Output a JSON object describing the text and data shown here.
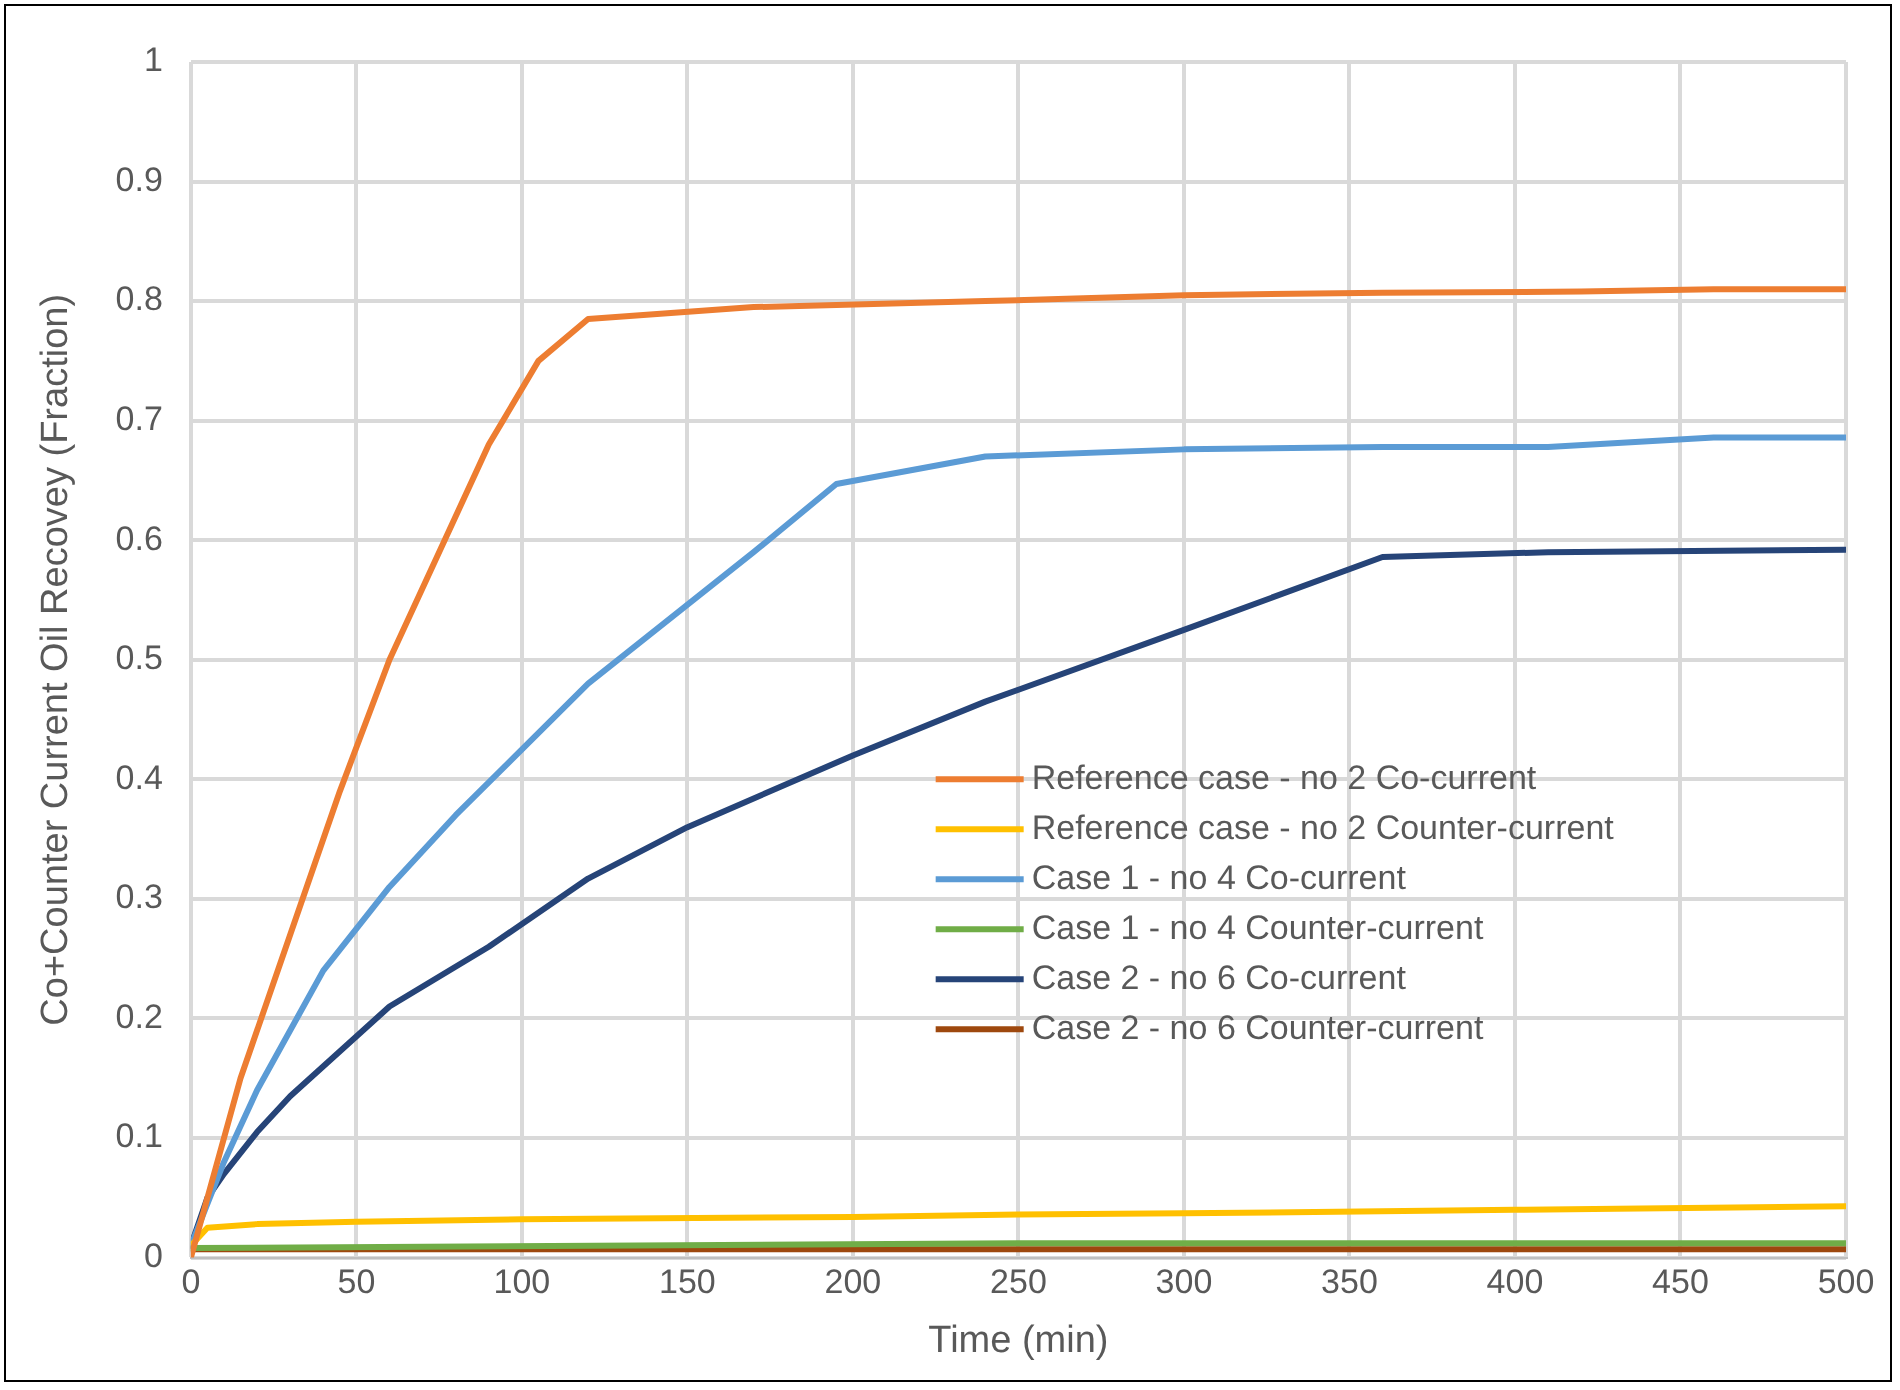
{
  "chart_data": {
    "type": "line",
    "xlabel": "Time (min)",
    "ylabel": "Co+Counter Current Oil Recovey (Fraction)",
    "xlim": [
      0,
      500
    ],
    "xticks": [
      0,
      50,
      100,
      150,
      200,
      250,
      300,
      350,
      400,
      450,
      500
    ],
    "ylim": [
      0,
      1
    ],
    "yticks": [
      0,
      0.1,
      0.2,
      0.3,
      0.4,
      0.5,
      0.6,
      0.7,
      0.8,
      0.9,
      1
    ],
    "grid": true,
    "legend": "center right",
    "marker": "none",
    "line_style": "solid",
    "series": [
      {
        "name": "Reference case - no 2 Co-current",
        "color": "#ed7d31",
        "x": [
          0,
          15,
          30,
          45,
          60,
          90,
          105,
          120,
          170,
          240,
          300,
          360,
          420,
          460,
          500
        ],
        "values": [
          0,
          0.15,
          0.27,
          0.39,
          0.5,
          0.68,
          0.75,
          0.785,
          0.795,
          0.8,
          0.805,
          0.807,
          0.808,
          0.81,
          0.81
        ]
      },
      {
        "name": "Reference case - no 2 Counter-current",
        "color": "#ffc000",
        "x": [
          0,
          5,
          20,
          50,
          100,
          200,
          250,
          300,
          400,
          500
        ],
        "values": [
          0.01,
          0.025,
          0.028,
          0.03,
          0.032,
          0.034,
          0.036,
          0.037,
          0.04,
          0.043
        ]
      },
      {
        "name": "Case 1 - no 4 Co-current",
        "color": "#5b9bd5",
        "x": [
          0,
          10,
          20,
          40,
          60,
          80,
          120,
          170,
          195,
          240,
          300,
          360,
          410,
          460,
          500
        ],
        "values": [
          0.01,
          0.08,
          0.14,
          0.24,
          0.31,
          0.37,
          0.48,
          0.59,
          0.647,
          0.67,
          0.676,
          0.678,
          0.678,
          0.686,
          0.686
        ]
      },
      {
        "name": "Case 1 - no 4 Counter-current",
        "color": "#70ad47",
        "x": [
          0,
          250,
          500
        ],
        "values": [
          0.008,
          0.012,
          0.012
        ]
      },
      {
        "name": "Case 2 - no 6 Co-current",
        "color": "#264478",
        "x": [
          0,
          5,
          10,
          20,
          30,
          60,
          90,
          120,
          150,
          200,
          240,
          300,
          360,
          410,
          500
        ],
        "values": [
          0.01,
          0.05,
          0.07,
          0.105,
          0.135,
          0.21,
          0.26,
          0.317,
          0.36,
          0.42,
          0.465,
          0.525,
          0.586,
          0.59,
          0.592
        ]
      },
      {
        "name": "Case 2 - no 6 Counter-current",
        "color": "#9e480e",
        "x": [
          0,
          500
        ],
        "values": [
          0.007,
          0.007
        ]
      }
    ]
  }
}
